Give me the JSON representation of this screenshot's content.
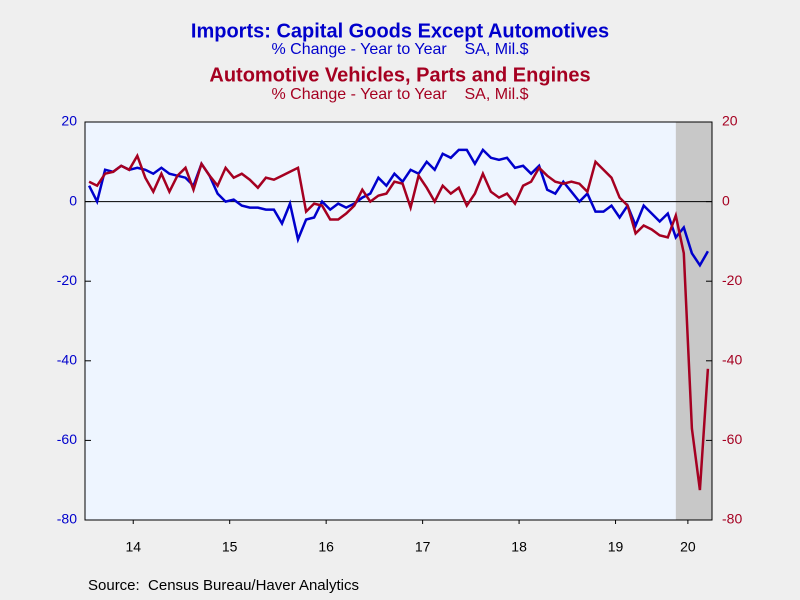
{
  "chart_data": {
    "type": "line",
    "title": "Imports: Capital Goods Except Automotives",
    "subtitle": "% Change - Year to Year    SA, Mil.$",
    "title2": "Automotive Vehicles, Parts and Engines",
    "subtitle2": "% Change - Year to Year    SA, Mil.$",
    "source": "Source:  Census Bureau/Haver Analytics",
    "x": [
      2014.042,
      2014.125,
      2014.208,
      2014.292,
      2014.375,
      2014.458,
      2014.542,
      2014.625,
      2014.708,
      2014.792,
      2014.875,
      2014.958,
      2015.042,
      2015.125,
      2015.208,
      2015.292,
      2015.375,
      2015.458,
      2015.542,
      2015.625,
      2015.708,
      2015.792,
      2015.875,
      2015.958,
      2016.042,
      2016.125,
      2016.208,
      2016.292,
      2016.375,
      2016.458,
      2016.542,
      2016.625,
      2016.708,
      2016.792,
      2016.875,
      2016.958,
      2017.042,
      2017.125,
      2017.208,
      2017.292,
      2017.375,
      2017.458,
      2017.542,
      2017.625,
      2017.708,
      2017.792,
      2017.875,
      2017.958,
      2018.042,
      2018.125,
      2018.208,
      2018.292,
      2018.375,
      2018.458,
      2018.542,
      2018.625,
      2018.708,
      2018.792,
      2018.875,
      2018.958,
      2019.042,
      2019.125,
      2019.208,
      2019.292,
      2019.375,
      2019.458,
      2019.542,
      2019.625,
      2019.708,
      2019.792,
      2019.875,
      2019.958,
      2020.042,
      2020.125,
      2020.208,
      2020.292,
      2020.375,
      2020.458
    ],
    "series": [
      {
        "name": "Imports: Capital Goods Except Automotives",
        "color": "#0000cc",
        "axis": "y",
        "values": [
          4,
          0,
          8,
          7.5,
          9,
          8,
          8.5,
          8,
          7,
          8.5,
          7,
          6.5,
          6,
          4,
          9.5,
          6.5,
          2,
          0,
          0.5,
          -1,
          -1.5,
          -1.5,
          -2,
          -2,
          -5.5,
          -0.5,
          -9.5,
          -4.5,
          -4,
          0,
          -2,
          -0.5,
          -1.5,
          -0.5,
          1,
          2,
          6,
          4,
          7,
          5,
          8,
          7,
          10,
          8,
          12,
          11,
          13,
          13,
          9.5,
          13,
          11,
          10.5,
          11,
          8.5,
          9,
          7,
          9,
          3,
          2,
          5,
          2.5,
          0,
          2,
          -2.5,
          -2.5,
          -1,
          -4,
          -1,
          -6,
          -1,
          -3,
          -5,
          -3,
          -9,
          -6.5,
          -13,
          -16,
          -12.5
        ]
      },
      {
        "name": "Automotive Vehicles, Parts and Engines",
        "color": "#a50021",
        "axis": "y2",
        "values": [
          5,
          4,
          7,
          7.5,
          9,
          8,
          11.5,
          6,
          2.5,
          7,
          2.5,
          6.5,
          8.5,
          3,
          9.5,
          6.5,
          4,
          8.5,
          6,
          7,
          5.5,
          3.5,
          6,
          5.5,
          6.5,
          7.5,
          8.5,
          -2.5,
          -0.5,
          -1,
          -4.5,
          -4.5,
          -3,
          -1,
          3,
          0,
          1.5,
          2,
          5,
          4.5,
          -1.5,
          6.5,
          3.5,
          0,
          4,
          2,
          3.5,
          -1,
          2,
          7,
          2.5,
          1,
          2,
          -0.5,
          4,
          5,
          8.5,
          6.5,
          5,
          4.5,
          5,
          4.5,
          2.5,
          10,
          8,
          6,
          1,
          -1,
          -8,
          -6,
          -7,
          -8.5,
          -9,
          -3.5,
          -13,
          -57,
          -72.5,
          -42
        ]
      }
    ],
    "xlim": [
      2014,
      2020.5
    ],
    "xticks": [
      {
        "value": 2014.5,
        "label": "14"
      },
      {
        "value": 2015.5,
        "label": "15"
      },
      {
        "value": 2016.5,
        "label": "16"
      },
      {
        "value": 2017.5,
        "label": "17"
      },
      {
        "value": 2018.5,
        "label": "18"
      },
      {
        "value": 2019.5,
        "label": "19"
      },
      {
        "value": 2020.25,
        "label": "20"
      }
    ],
    "ylim": [
      -80,
      20
    ],
    "yticks": [
      20,
      0,
      -20,
      -40,
      -60,
      -80
    ],
    "y2lim": [
      -80,
      20
    ],
    "y2ticks": [
      20,
      0,
      -20,
      -40,
      -60,
      -80
    ],
    "shaded_region": [
      2020.125,
      2020.5
    ]
  }
}
